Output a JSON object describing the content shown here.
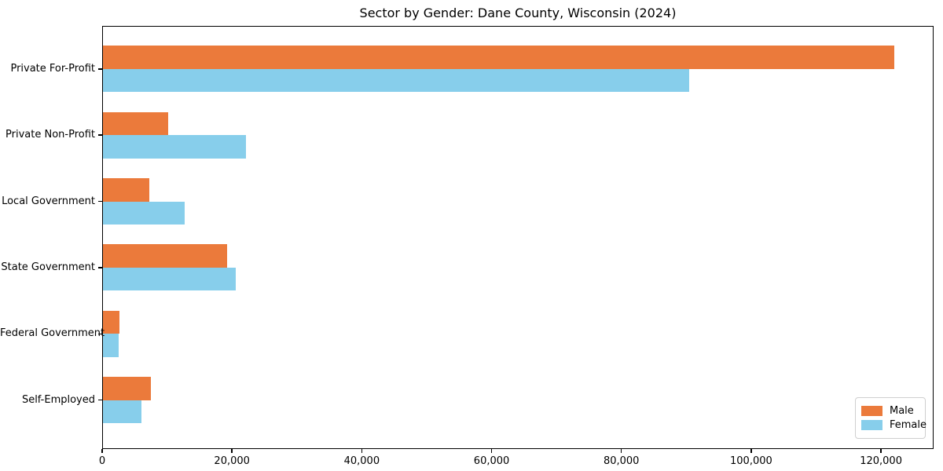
{
  "title": "Sector by Gender: Dane County, Wisconsin (2024)",
  "legend": {
    "position": "lower right",
    "entries": [
      {
        "label": "Male",
        "color": "#eb7a3b"
      },
      {
        "label": "Female",
        "color": "#87ceeb"
      }
    ]
  },
  "chart_data": {
    "type": "bar",
    "orientation": "horizontal",
    "title": "Sector by Gender: Dane County, Wisconsin (2024)",
    "xlabel": "",
    "ylabel": "",
    "categories": [
      "Private For-Profit",
      "Private Non-Profit",
      "Local Government",
      "State Government",
      "Federal Government",
      "Self-Employed"
    ],
    "series": [
      {
        "name": "Male",
        "color": "#eb7a3b",
        "values": [
          122000,
          10200,
          7300,
          19200,
          2700,
          7500
        ]
      },
      {
        "name": "Female",
        "color": "#87ceeb",
        "values": [
          90400,
          22100,
          12700,
          20600,
          2600,
          6000
        ]
      }
    ],
    "xlim": [
      0,
      128100
    ],
    "xticks": [
      0,
      20000,
      40000,
      60000,
      80000,
      100000,
      120000
    ],
    "xtick_labels": [
      "0",
      "20,000",
      "40,000",
      "60,000",
      "80,000",
      "100,000",
      "120,000"
    ],
    "grid": false,
    "legend_position": "lower right",
    "bar_width": 0.35
  }
}
